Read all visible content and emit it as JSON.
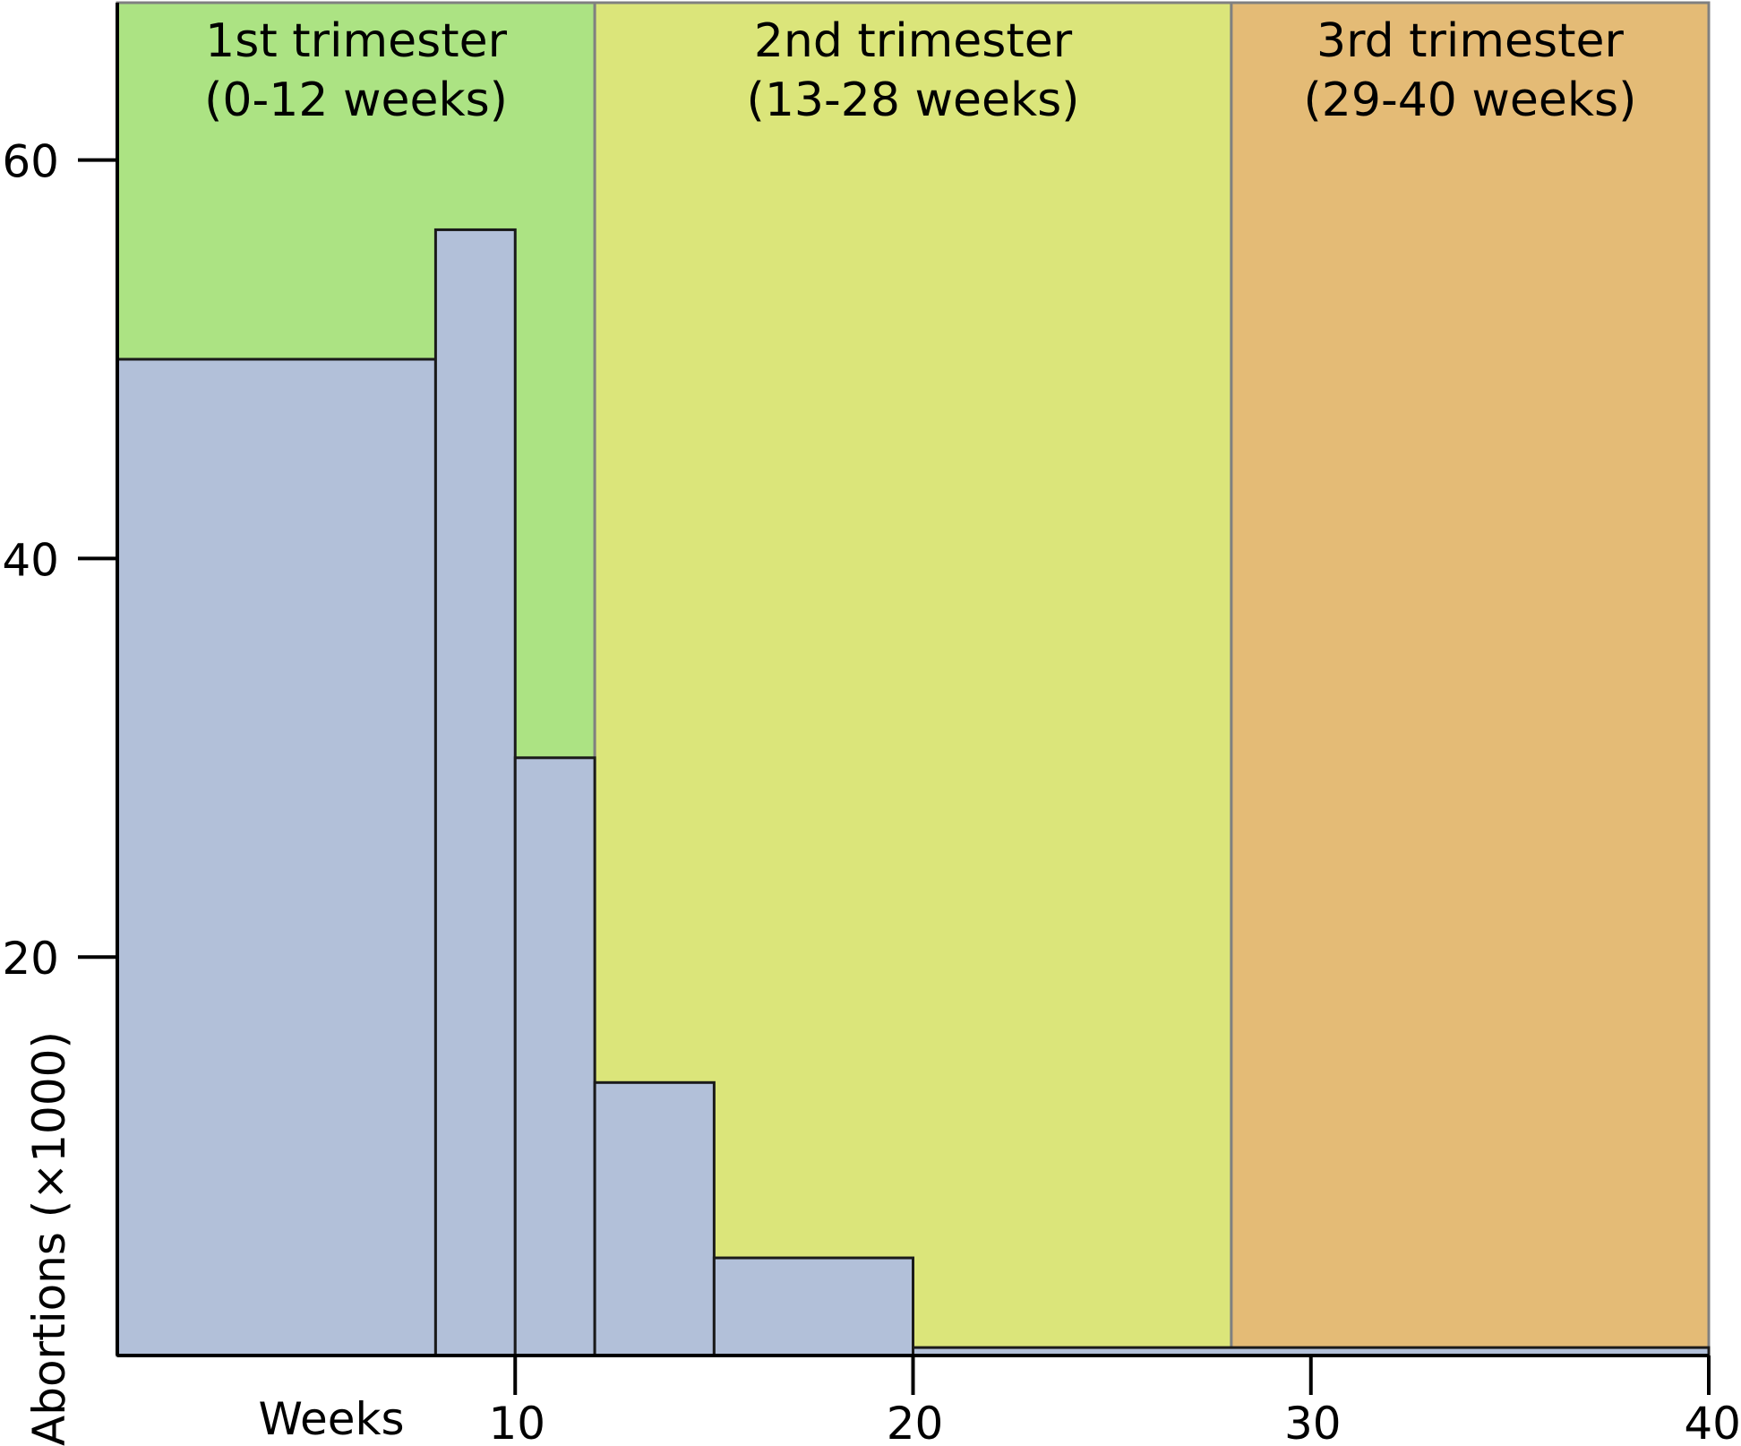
{
  "chart_data": {
    "type": "bar",
    "xlabel": "Weeks",
    "ylabel": "Abortions (×1000)",
    "xlim": [
      0,
      40
    ],
    "ylim": [
      0,
      68
    ],
    "x_ticks": [
      10,
      20,
      30,
      40
    ],
    "y_ticks": [
      20,
      40,
      60
    ],
    "bands": [
      {
        "line1": "1st trimester",
        "line2": "(0-12 weeks)",
        "from": 0,
        "to": 12,
        "color": "#ace383"
      },
      {
        "line1": "2nd trimester",
        "line2": "(13-28 weeks)",
        "from": 12,
        "to": 28,
        "color": "#dbe57a"
      },
      {
        "line1": "3rd trimester",
        "line2": "(29-40 weeks)",
        "from": 28,
        "to": 40,
        "color": "#e4bb76"
      }
    ],
    "bars": [
      {
        "from": 0,
        "to": 8,
        "value": 50
      },
      {
        "from": 8,
        "to": 10,
        "value": 56.5
      },
      {
        "from": 10,
        "to": 12,
        "value": 30
      },
      {
        "from": 12,
        "to": 15,
        "value": 13.7
      },
      {
        "from": 15,
        "to": 20,
        "value": 4.9
      },
      {
        "from": 20,
        "to": 40,
        "value": 0.4
      }
    ],
    "bar_color": "#b2c0d9"
  }
}
